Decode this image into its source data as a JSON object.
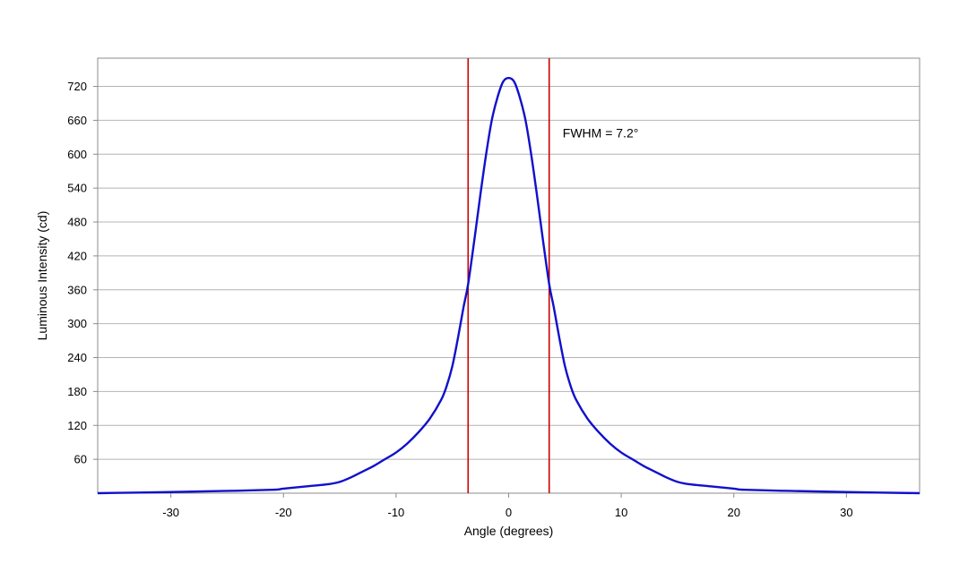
{
  "chart_data": {
    "type": "line",
    "title": "",
    "xlabel": "Angle (degrees)",
    "ylabel": "Luminous Intensity (cd)",
    "xlim": [
      -36.5,
      36.5
    ],
    "ylim": [
      0,
      770
    ],
    "xticks": [
      -30,
      -20,
      -10,
      0,
      10,
      20,
      30
    ],
    "xtick_labels": [
      "-30",
      "-20",
      "-10",
      "0",
      "10",
      "20",
      "30"
    ],
    "yticks": [
      60,
      120,
      180,
      240,
      300,
      360,
      420,
      480,
      540,
      600,
      660,
      720
    ],
    "ytick_labels": [
      "60",
      "120",
      "180",
      "240",
      "300",
      "360",
      "420",
      "480",
      "540",
      "600",
      "660",
      "720"
    ],
    "grid": {
      "horizontal": true,
      "vertical": false
    },
    "legend": "none",
    "series": [
      {
        "color": "#1010cc",
        "x": [
          -36.5,
          -30,
          -25,
          -21,
          -20,
          -18,
          -16,
          -15,
          -14,
          -13,
          -12,
          -11,
          -10,
          -9,
          -8,
          -7,
          -6,
          -5.5,
          -5,
          -4.5,
          -4,
          -3.6,
          -3,
          -2.5,
          -2,
          -1.5,
          -1,
          -0.5,
          0,
          0.5,
          1,
          1.5,
          2,
          2.5,
          3,
          3.6,
          4,
          4.5,
          5,
          5.5,
          6,
          7,
          8,
          9,
          10,
          11,
          12,
          13,
          14,
          15,
          16,
          18,
          20,
          21,
          25,
          30,
          36.5
        ],
        "y": [
          0,
          2,
          4,
          6,
          8,
          12,
          16,
          20,
          28,
          38,
          48,
          60,
          72,
          88,
          108,
          132,
          165,
          190,
          225,
          275,
          330,
          370,
          455,
          530,
          600,
          660,
          700,
          728,
          735,
          728,
          700,
          660,
          600,
          530,
          455,
          370,
          330,
          275,
          225,
          190,
          165,
          132,
          108,
          88,
          72,
          60,
          48,
          38,
          28,
          20,
          16,
          12,
          8,
          6,
          4,
          2,
          0
        ]
      }
    ],
    "vlines": [
      {
        "x": -3.6,
        "color": "#cc0000"
      },
      {
        "x": 3.6,
        "color": "#cc0000"
      }
    ],
    "annotations": [
      {
        "text": "FWHM = 7.2°",
        "x": 4.8,
        "y": 630
      }
    ]
  }
}
